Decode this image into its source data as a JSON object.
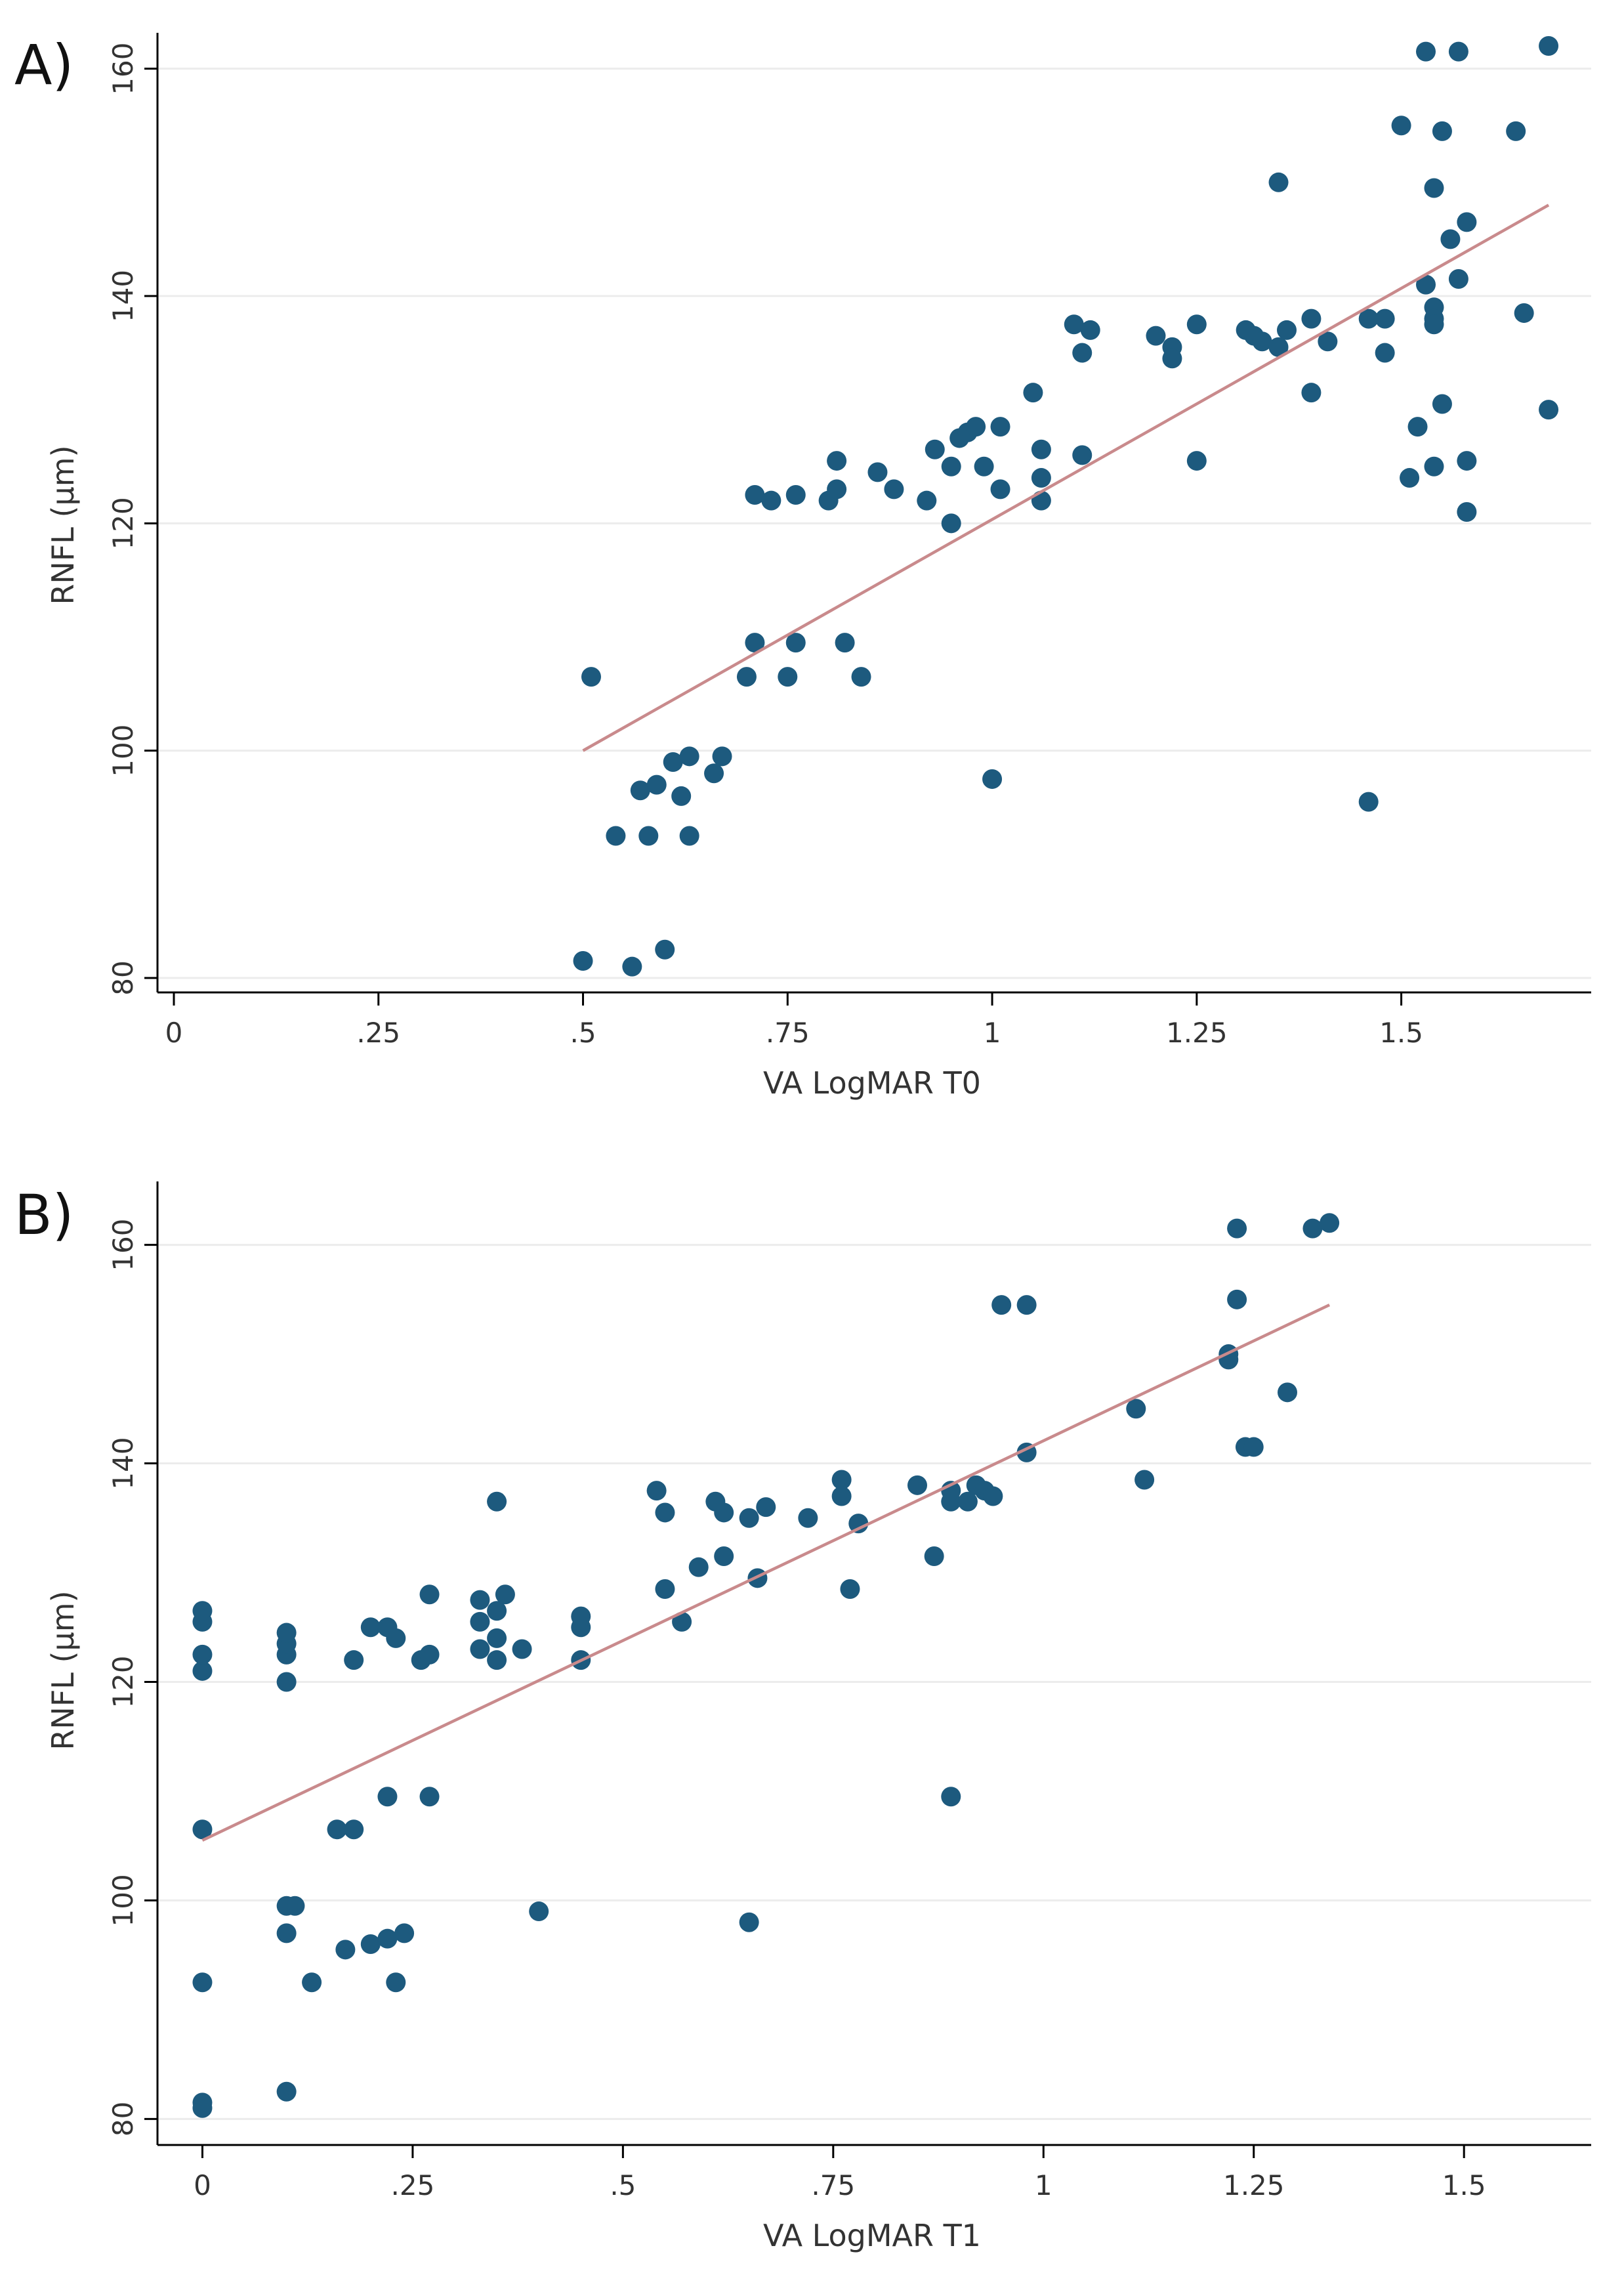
{
  "colors": {
    "marker": "#1d5a7e",
    "fit_line": "#c98a8c",
    "grid": "#ececec",
    "axis": "#000000"
  },
  "chart_data": [
    {
      "type": "scatter",
      "panel_label": "A)",
      "xlabel": "VA LogMAR T0",
      "ylabel": "RNFL (μm)",
      "xlim": [
        0,
        1.7
      ],
      "ylim": [
        80,
        162
      ],
      "xticks": [
        0,
        0.25,
        0.5,
        0.75,
        1,
        1.25,
        1.5
      ],
      "xtick_labels": [
        "0",
        ".25",
        ".5",
        ".75",
        "1",
        "1.25",
        "1.5"
      ],
      "yticks": [
        80,
        100,
        120,
        140,
        160
      ],
      "ytick_labels": [
        "80",
        "100",
        "120",
        "140",
        "160"
      ],
      "fit_line": {
        "x": [
          0.5,
          1.68
        ],
        "y": [
          100,
          148
        ]
      },
      "points": [
        [
          0.5,
          81.5
        ],
        [
          0.56,
          81
        ],
        [
          0.6,
          82.5
        ],
        [
          0.51,
          106.5
        ],
        [
          0.54,
          92.5
        ],
        [
          0.58,
          92.5
        ],
        [
          0.63,
          92.5
        ],
        [
          0.57,
          96.5
        ],
        [
          0.59,
          97
        ],
        [
          0.62,
          96
        ],
        [
          0.61,
          99
        ],
        [
          0.63,
          99.5
        ],
        [
          0.66,
          98
        ],
        [
          0.67,
          99.5
        ],
        [
          0.7,
          106.5
        ],
        [
          0.71,
          109.5
        ],
        [
          0.75,
          106.5
        ],
        [
          0.76,
          109.5
        ],
        [
          0.82,
          109.5
        ],
        [
          0.84,
          106.5
        ],
        [
          0.71,
          122.5
        ],
        [
          0.73,
          122
        ],
        [
          0.76,
          122.5
        ],
        [
          0.8,
          122
        ],
        [
          0.81,
          123
        ],
        [
          0.81,
          125.5
        ],
        [
          0.86,
          124.5
        ],
        [
          0.88,
          123
        ],
        [
          0.92,
          122
        ],
        [
          0.93,
          126.5
        ],
        [
          0.95,
          125
        ],
        [
          0.95,
          120
        ],
        [
          0.96,
          127.5
        ],
        [
          0.97,
          128
        ],
        [
          0.98,
          128.5
        ],
        [
          0.99,
          125
        ],
        [
          1.0,
          97.5
        ],
        [
          1.01,
          123
        ],
        [
          1.01,
          128.5
        ],
        [
          1.05,
          131.5
        ],
        [
          1.06,
          126.5
        ],
        [
          1.06,
          124
        ],
        [
          1.06,
          122
        ],
        [
          1.1,
          137.5
        ],
        [
          1.11,
          135
        ],
        [
          1.11,
          126
        ],
        [
          1.12,
          137
        ],
        [
          1.2,
          136.5
        ],
        [
          1.22,
          135.5
        ],
        [
          1.22,
          134.5
        ],
        [
          1.25,
          137.5
        ],
        [
          1.25,
          125.5
        ],
        [
          1.31,
          137
        ],
        [
          1.32,
          136.5
        ],
        [
          1.33,
          136
        ],
        [
          1.35,
          150
        ],
        [
          1.35,
          135.5
        ],
        [
          1.36,
          137
        ],
        [
          1.39,
          131.5
        ],
        [
          1.39,
          138
        ],
        [
          1.41,
          136
        ],
        [
          1.46,
          95.5
        ],
        [
          1.46,
          138
        ],
        [
          1.48,
          138
        ],
        [
          1.48,
          135
        ],
        [
          1.5,
          155
        ],
        [
          1.51,
          124
        ],
        [
          1.52,
          128.5
        ],
        [
          1.53,
          141
        ],
        [
          1.53,
          161.5
        ],
        [
          1.54,
          149.5
        ],
        [
          1.54,
          139
        ],
        [
          1.54,
          138
        ],
        [
          1.54,
          137.5
        ],
        [
          1.54,
          125
        ],
        [
          1.55,
          154.5
        ],
        [
          1.55,
          130.5
        ],
        [
          1.56,
          145
        ],
        [
          1.57,
          141.5
        ],
        [
          1.57,
          161.5
        ],
        [
          1.58,
          146.5
        ],
        [
          1.58,
          125.5
        ],
        [
          1.58,
          121
        ],
        [
          1.64,
          154.5
        ],
        [
          1.65,
          138.5
        ],
        [
          1.68,
          162
        ],
        [
          1.68,
          130
        ]
      ]
    },
    {
      "type": "scatter",
      "panel_label": "B)",
      "xlabel": "VA LogMAR T1",
      "ylabel": "RNFL (μm)",
      "xlim": [
        -0.03,
        1.62
      ],
      "ylim": [
        79,
        164
      ],
      "xticks": [
        0,
        0.25,
        0.5,
        0.75,
        1,
        1.25,
        1.5
      ],
      "xtick_labels": [
        "0",
        ".25",
        ".5",
        ".75",
        "1",
        "1.25",
        "1.5"
      ],
      "yticks": [
        80,
        100,
        120,
        140,
        160
      ],
      "ytick_labels": [
        "80",
        "100",
        "120",
        "140",
        "160"
      ],
      "fit_line": {
        "x": [
          0,
          1.34
        ],
        "y": [
          105.5,
          154.5
        ]
      },
      "points": [
        [
          0,
          81.5
        ],
        [
          0,
          81
        ],
        [
          0,
          92.5
        ],
        [
          0,
          106.5
        ],
        [
          0,
          121
        ],
        [
          0,
          122.5
        ],
        [
          0,
          125.5
        ],
        [
          0,
          126.5
        ],
        [
          0.1,
          82.5
        ],
        [
          0.1,
          97
        ],
        [
          0.1,
          99.5
        ],
        [
          0.11,
          99.5
        ],
        [
          0.13,
          92.5
        ],
        [
          0.1,
          120
        ],
        [
          0.1,
          122.5
        ],
        [
          0.1,
          123.5
        ],
        [
          0.1,
          124.5
        ],
        [
          0.16,
          106.5
        ],
        [
          0.18,
          106.5
        ],
        [
          0.17,
          95.5
        ],
        [
          0.18,
          122
        ],
        [
          0.2,
          125
        ],
        [
          0.2,
          96
        ],
        [
          0.22,
          96.5
        ],
        [
          0.22,
          109.5
        ],
        [
          0.22,
          125
        ],
        [
          0.23,
          124
        ],
        [
          0.23,
          92.5
        ],
        [
          0.24,
          97
        ],
        [
          0.26,
          122
        ],
        [
          0.27,
          122.5
        ],
        [
          0.27,
          128
        ],
        [
          0.27,
          109.5
        ],
        [
          0.33,
          123
        ],
        [
          0.33,
          125.5
        ],
        [
          0.33,
          127.5
        ],
        [
          0.35,
          136.5
        ],
        [
          0.35,
          122
        ],
        [
          0.35,
          124
        ],
        [
          0.35,
          126.5
        ],
        [
          0.36,
          128
        ],
        [
          0.38,
          123
        ],
        [
          0.4,
          99
        ],
        [
          0.45,
          122
        ],
        [
          0.45,
          125
        ],
        [
          0.45,
          126
        ],
        [
          0.54,
          137.5
        ],
        [
          0.55,
          135.5
        ],
        [
          0.55,
          128.5
        ],
        [
          0.57,
          125.5
        ],
        [
          0.59,
          130.5
        ],
        [
          0.61,
          136.5
        ],
        [
          0.62,
          135.5
        ],
        [
          0.62,
          131.5
        ],
        [
          0.65,
          135
        ],
        [
          0.65,
          98
        ],
        [
          0.66,
          129.5
        ],
        [
          0.67,
          136
        ],
        [
          0.72,
          135
        ],
        [
          0.76,
          138.5
        ],
        [
          0.76,
          137
        ],
        [
          0.77,
          128.5
        ],
        [
          0.78,
          134.5
        ],
        [
          0.85,
          138
        ],
        [
          0.87,
          131.5
        ],
        [
          0.89,
          109.5
        ],
        [
          0.89,
          136.5
        ],
        [
          0.89,
          137.5
        ],
        [
          0.91,
          136.5
        ],
        [
          0.92,
          138
        ],
        [
          0.93,
          137.5
        ],
        [
          0.94,
          137
        ],
        [
          0.95,
          154.5
        ],
        [
          0.98,
          154.5
        ],
        [
          0.98,
          141
        ],
        [
          1.11,
          145
        ],
        [
          1.12,
          138.5
        ],
        [
          1.22,
          150
        ],
        [
          1.22,
          149.5
        ],
        [
          1.23,
          155
        ],
        [
          1.23,
          161.5
        ],
        [
          1.24,
          141.5
        ],
        [
          1.25,
          141.5
        ],
        [
          1.29,
          146.5
        ],
        [
          1.32,
          161.5
        ],
        [
          1.34,
          162
        ]
      ]
    }
  ]
}
